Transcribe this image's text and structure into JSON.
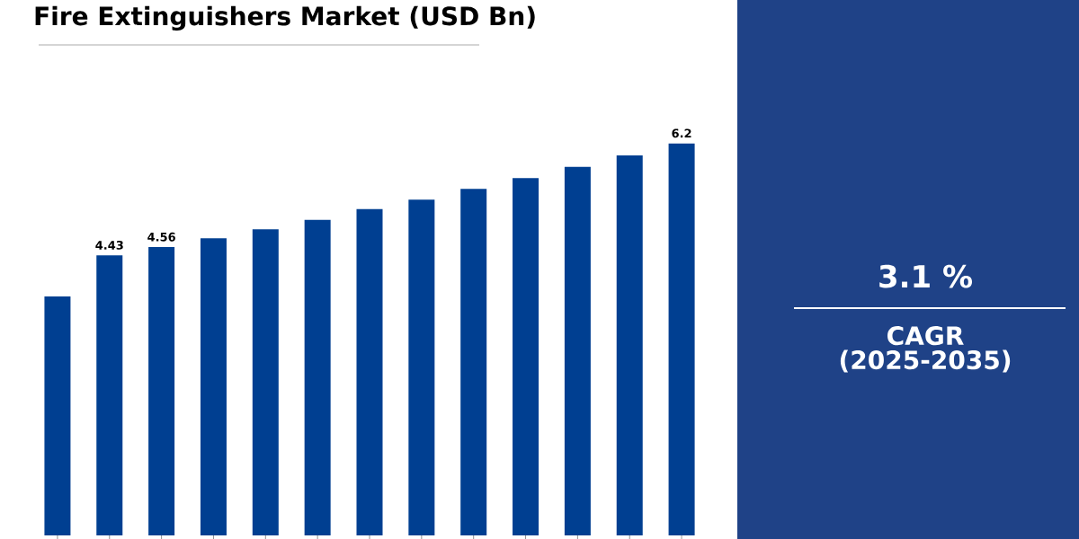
{
  "chart_data": [
    {
      "type": "bar",
      "title": "Fire Extinguishers Market (USD Bn)",
      "categories": [
        null,
        null,
        null,
        null,
        null,
        null,
        null,
        null,
        null,
        null,
        null,
        null,
        null
      ],
      "values": [
        3.78,
        4.43,
        4.56,
        4.7,
        4.84,
        4.99,
        5.16,
        5.31,
        5.48,
        5.65,
        5.83,
        6.01,
        6.2
      ],
      "color": "#003f91",
      "value_labels": [
        null,
        "4.43",
        "4.56",
        null,
        null,
        null,
        null,
        null,
        null,
        null,
        null,
        null,
        "6.2"
      ]
    },
    {
      "type": "other",
      "title": "3.1 %",
      "subtitle": "CAGR (2025-2035)"
    }
  ]
}
